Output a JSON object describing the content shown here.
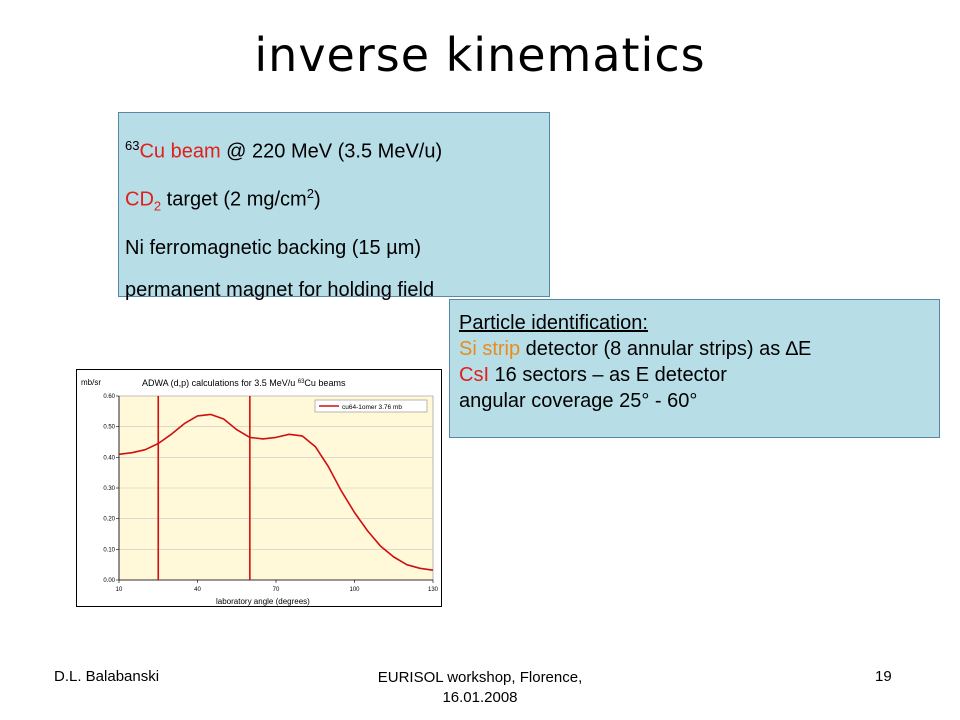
{
  "slide": {
    "title": "inverse kinematics",
    "setup": {
      "line1": {
        "sup": "63",
        "red": "Cu beam",
        "rest": " @ 220 MeV (3.5 MeV/u)"
      },
      "line2": {
        "red": "CD",
        "sub": "2",
        "rest_a": " target (2 mg/cm",
        "sup": "2",
        "rest_b": ")"
      },
      "line3": "Ni ferromagnetic backing (15 µm)",
      "line4": "permanent magnet for holding field"
    },
    "pid": {
      "heading": "Particle identification:",
      "line2": {
        "orange": "Si strip",
        "rest": " detector (8 annular strips) as ∆E"
      },
      "line3": {
        "red": "CsI",
        "rest": " 16 sectors – as E detector"
      },
      "line4": "angular coverage 25° - 60°"
    },
    "footer": {
      "left": "D.L. Balabanski",
      "center_line1": "EURISOL workshop, Florence,",
      "center_line2": "16.01.2008",
      "right": "19"
    },
    "colors": {
      "box_fill": "#b7dde6",
      "box_border": "#5a87a8",
      "accent_red": "#e0201b",
      "accent_orange": "#e98c1e",
      "plot_bg": "#fff9d9"
    }
  },
  "chart_data": {
    "type": "line",
    "title_pre": "ADWA (d,p) calculations for 3.5 MeV/u ",
    "title_sup": "63",
    "title_post": "Cu beams",
    "ylabel": "mb/sr",
    "xlabel": "laboratory angle (degrees)",
    "xlim": [
      10,
      130
    ],
    "ylim": [
      0,
      0.6
    ],
    "xticks": [
      "10",
      "40",
      "70",
      "100",
      "130"
    ],
    "yticks": [
      "0.00",
      "0.10",
      "0.20",
      "0.30",
      "0.40",
      "0.50",
      "0.60"
    ],
    "grid": true,
    "legend": "top-right",
    "series": [
      {
        "name": "cu64-1omer 3.76 mb",
        "color": "#d01010",
        "x": [
          10,
          15,
          20,
          25,
          30,
          35,
          40,
          45,
          50,
          55,
          60,
          65,
          70,
          75,
          80,
          85,
          90,
          95,
          100,
          105,
          110,
          115,
          120,
          125,
          130
        ],
        "y": [
          0.41,
          0.415,
          0.425,
          0.445,
          0.475,
          0.51,
          0.535,
          0.54,
          0.525,
          0.49,
          0.465,
          0.46,
          0.465,
          0.475,
          0.47,
          0.435,
          0.37,
          0.29,
          0.22,
          0.16,
          0.11,
          0.075,
          0.05,
          0.038,
          0.032
        ]
      }
    ],
    "markers": [
      {
        "x": 25,
        "color": "#d01010"
      },
      {
        "x": 60,
        "color": "#d01010"
      }
    ]
  }
}
